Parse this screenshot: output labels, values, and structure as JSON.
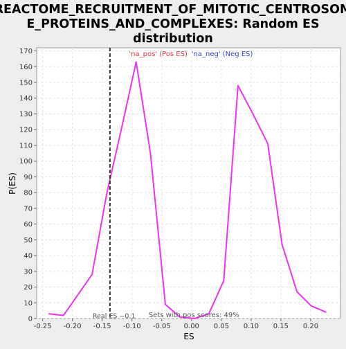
{
  "chart_data": {
    "type": "line",
    "title_lines": [
      "REACTOME_RECRUITMENT_OF_MITOTIC_CENTROSOM",
      "E_PROTEINS_AND_COMPLEXES: Random ES",
      "distribution"
    ],
    "xlabel": "ES",
    "ylabel": "P(ES)",
    "xlim": [
      -0.26,
      0.25
    ],
    "ylim": [
      0,
      172
    ],
    "x_ticks": [
      -0.25,
      -0.2,
      -0.15,
      -0.1,
      -0.05,
      0.0,
      0.05,
      0.1,
      0.15,
      0.2
    ],
    "x_tick_labels": [
      "-0.25",
      "-0.20",
      "-0.15",
      "-0.10",
      "-0.05",
      "0.00",
      "0.05",
      "0.10",
      "0.15",
      "0.20"
    ],
    "y_ticks": [
      0,
      10,
      20,
      30,
      40,
      50,
      60,
      70,
      80,
      90,
      100,
      110,
      120,
      130,
      140,
      150,
      160,
      170
    ],
    "grid": true,
    "series": [
      {
        "color": "#ee33ee",
        "x": [
          -0.24,
          -0.215,
          -0.167,
          -0.142,
          -0.118,
          -0.093,
          -0.069,
          -0.044,
          -0.02,
          0.005,
          0.029,
          0.054,
          0.078,
          0.103,
          0.128,
          0.152,
          0.177,
          0.201,
          0.226
        ],
        "y": [
          3,
          2,
          28,
          80,
          120,
          163,
          105,
          9,
          1,
          0,
          3,
          24,
          148,
          130,
          111,
          47,
          17,
          8,
          4
        ]
      }
    ],
    "real_es": {
      "value": -0.137,
      "label": "Real ES −0.1"
    },
    "annotations": {
      "pos_label": "'na_pos' (Pos ES)",
      "neg_label": "'na_neg' (Neg ES)",
      "pos_scores": "Sets with pos scores: 49%"
    },
    "colors": {
      "pos": "#ee3344",
      "neg": "#3344cc",
      "line": "#ee33ee",
      "real_es": "#333333"
    }
  }
}
